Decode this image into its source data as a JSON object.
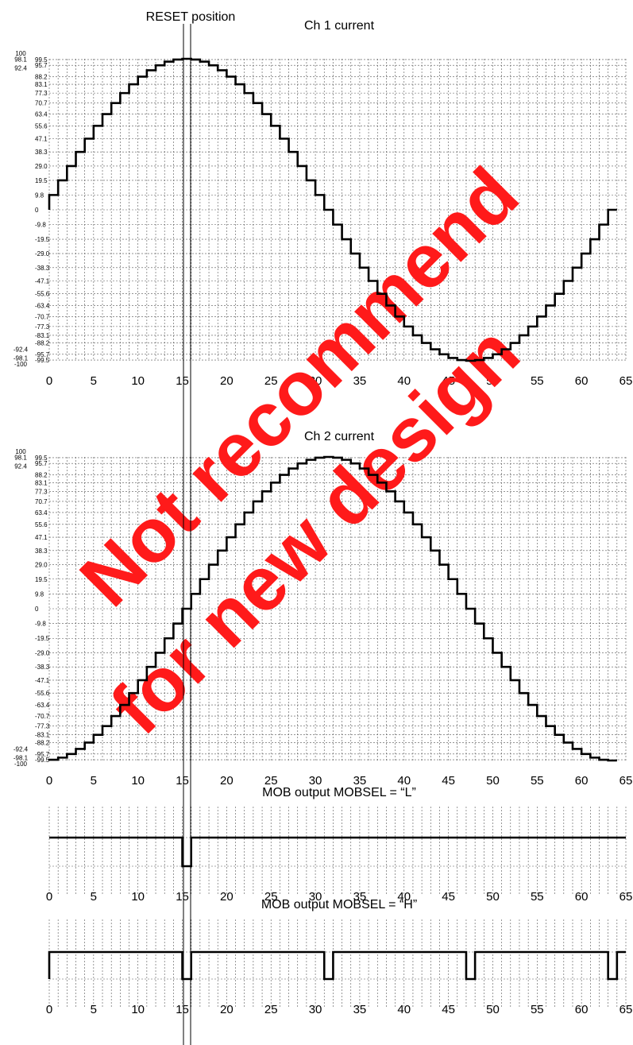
{
  "reset_label": "RESET position",
  "x_ticks": [
    0,
    5,
    10,
    15,
    20,
    25,
    30,
    35,
    40,
    45,
    50,
    55,
    60,
    65
  ],
  "watermark": {
    "line1": "Not recommend",
    "line2": "for new design",
    "color": "#ff1a1a"
  },
  "colors": {
    "trace": "#000000",
    "grid": "#555555",
    "watermark": "#ff1a1a"
  },
  "chart_data": [
    {
      "type": "line",
      "title": "Ch 1 current",
      "step_count": 64,
      "x_range": [
        0,
        65
      ],
      "ylim": [
        -100,
        100
      ],
      "y_ticks_left": [
        "100",
        "98.1",
        "92.4",
        "-92.4",
        "-98.1",
        "-100"
      ],
      "y_ticks_right": [
        "99.5",
        "95.7",
        "88.2",
        "83.1",
        "77.3",
        "70.7",
        "63.4",
        "55.6",
        "47.1",
        "38.3",
        "29.0",
        "19.5",
        "9.8",
        "0",
        "-9.8",
        "-19.5",
        "-29.0",
        "-38.3",
        "-47.1",
        "-55.6",
        "-63.4",
        "-70.7",
        "-77.3",
        "-83.1",
        "-88.2",
        "-95.7",
        "-99.5"
      ],
      "series": [
        {
          "values": [
            0,
            9.8,
            19.5,
            29.0,
            38.3,
            47.1,
            55.6,
            63.4,
            70.7,
            77.3,
            83.1,
            88.2,
            92.4,
            95.7,
            98.1,
            99.5,
            100,
            99.5,
            98.1,
            95.7,
            92.4,
            88.2,
            83.1,
            77.3,
            70.7,
            63.4,
            55.6,
            47.1,
            38.3,
            29.0,
            19.5,
            9.8,
            0,
            -9.8,
            -19.5,
            -29.0,
            -38.3,
            -47.1,
            -55.6,
            -63.4,
            -70.7,
            -77.3,
            -83.1,
            -88.2,
            -92.4,
            -95.7,
            -98.1,
            -99.5,
            -100,
            -99.5,
            -98.1,
            -95.7,
            -92.4,
            -88.2,
            -83.1,
            -77.3,
            -70.7,
            -63.4,
            -55.6,
            -47.1,
            -38.3,
            -29.0,
            -19.5,
            -9.8,
            0
          ]
        }
      ]
    },
    {
      "type": "line",
      "title": "Ch 2 current",
      "step_count": 64,
      "x_range": [
        0,
        65
      ],
      "ylim": [
        -100,
        100
      ],
      "y_ticks_left": [
        "100",
        "98.1",
        "92.4",
        "-92.4",
        "-98.1",
        "-100"
      ],
      "y_ticks_right": [
        "99.5",
        "95.7",
        "88.2",
        "83.1",
        "77.3",
        "70.7",
        "63.4",
        "55.6",
        "47.1",
        "38.3",
        "29.0",
        "19.5",
        "9.8",
        "0",
        "-9.8",
        "-19.5",
        "-29.0",
        "-38.3",
        "-47.1",
        "-55.6",
        "-63.4",
        "-70.7",
        "-77.3",
        "-83.1",
        "-88.2",
        "-95.7",
        "-99.5"
      ],
      "series": [
        {
          "values": [
            -100,
            -99.5,
            -98.1,
            -95.7,
            -92.4,
            -88.2,
            -83.1,
            -77.3,
            -70.7,
            -63.4,
            -55.6,
            -47.1,
            -38.3,
            -29.0,
            -19.5,
            -9.8,
            0,
            9.8,
            19.5,
            29.0,
            38.3,
            47.1,
            55.6,
            63.4,
            70.7,
            77.3,
            83.1,
            88.2,
            92.4,
            95.7,
            98.1,
            99.5,
            100,
            99.5,
            98.1,
            95.7,
            92.4,
            88.2,
            83.1,
            77.3,
            70.7,
            63.4,
            55.6,
            47.1,
            38.3,
            29.0,
            19.5,
            9.8,
            0,
            -9.8,
            -19.5,
            -29.0,
            -38.3,
            -47.1,
            -55.6,
            -63.4,
            -70.7,
            -77.3,
            -83.1,
            -88.2,
            -92.4,
            -95.7,
            -98.1,
            -99.5,
            -100
          ]
        }
      ]
    },
    {
      "type": "line",
      "title": "MOB output MOBSEL = “L”",
      "x_range": [
        0,
        65
      ],
      "levels": [
        "H",
        "L"
      ],
      "series": [
        {
          "low_intervals": [
            [
              15,
              16
            ]
          ]
        }
      ]
    },
    {
      "type": "line",
      "title": "MOB output MOBSEL = “H”",
      "x_range": [
        0,
        65
      ],
      "levels": [
        "H",
        "L"
      ],
      "series": [
        {
          "low_intervals": [
            [
              0,
              0
            ],
            [
              15,
              16
            ],
            [
              31,
              32
            ],
            [
              47,
              48
            ],
            [
              63,
              64
            ]
          ]
        }
      ]
    }
  ]
}
